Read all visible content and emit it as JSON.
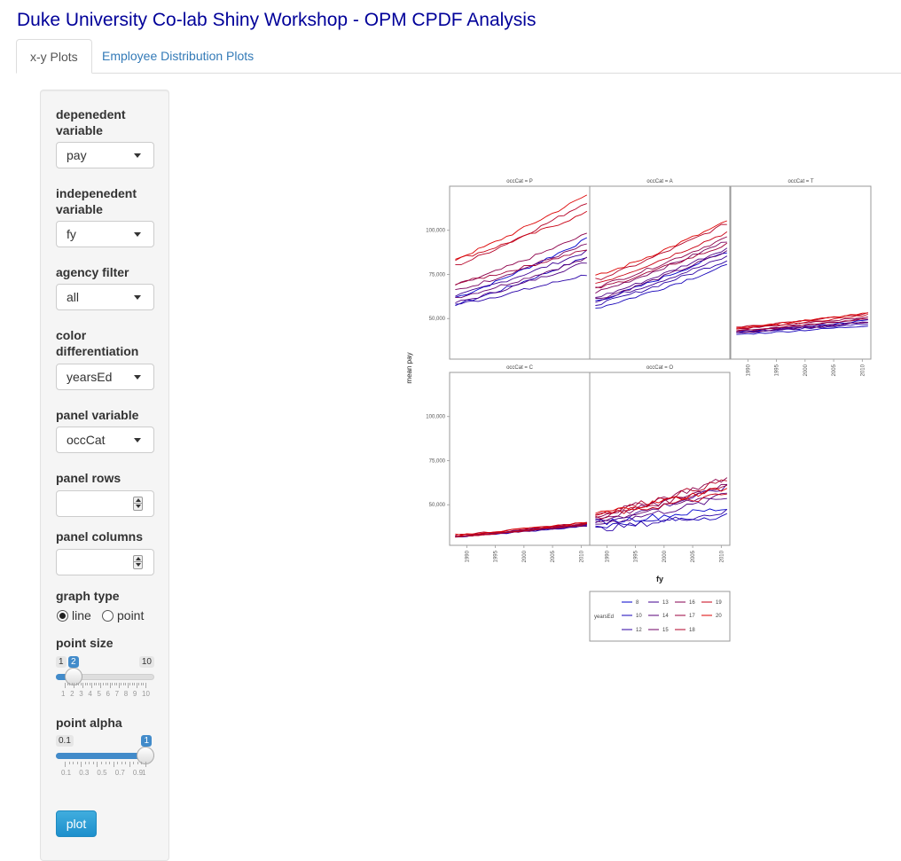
{
  "app": {
    "title": "Duke University Co-lab Shiny Workshop - OPM CPDF Analysis"
  },
  "tabs": [
    {
      "label": "x-y Plots",
      "active": true
    },
    {
      "label": "Employee Distribution Plots",
      "active": false
    }
  ],
  "sidebar": {
    "dependent_label": "depenedent variable",
    "dependent_value": "pay",
    "independent_label": "indepenedent variable",
    "independent_value": "fy",
    "agency_label": "agency filter",
    "agency_value": "all",
    "color_label": "color differentiation",
    "color_value": "yearsEd",
    "panel_var_label": "panel variable",
    "panel_var_value": "occCat",
    "panel_rows_label": "panel rows",
    "panel_cols_label": "panel columns",
    "graph_type_label": "graph type",
    "graph_type_options": [
      "line",
      "point"
    ],
    "graph_type_selected": "line",
    "point_size": {
      "label": "point size",
      "min": "1",
      "max": "10",
      "value": "2",
      "grid": [
        "1",
        "2",
        "3",
        "4",
        "5",
        "6",
        "7",
        "8",
        "9",
        "10"
      ],
      "fraction": 0.111
    },
    "point_alpha": {
      "label": "point alpha",
      "min": "0.1",
      "max": "1",
      "value": "1",
      "grid": [
        "0.1",
        "0.3",
        "0.5",
        "0.7",
        "0.9",
        "1"
      ],
      "fraction": 1.0
    },
    "plot_button": "plot"
  },
  "plot": {
    "xlabel": "fy",
    "ylabel": "mean pay",
    "y_ticks": [
      "100,000",
      "75,000",
      "50,000"
    ],
    "x_ticks": [
      "1990",
      "1995",
      "2000",
      "2005",
      "2010"
    ],
    "panels": [
      "occCat = P",
      "occCat = A",
      "occCat = T",
      "occCat = C",
      "occCat = O"
    ],
    "legend_title": "yearsEd",
    "legend_levels": [
      "8",
      "13",
      "16",
      "19",
      "10",
      "14",
      "17",
      "20",
      "12",
      "15",
      "18"
    ],
    "low_color": "#0000cc",
    "high_color": "#dd0000"
  },
  "chart_data": {
    "type": "line",
    "x": [
      1988,
      1989,
      1990,
      1991,
      1992,
      1993,
      1994,
      1995,
      1996,
      1997,
      1998,
      1999,
      2000,
      2001,
      2002,
      2003,
      2004,
      2005,
      2006,
      2007,
      2008,
      2009,
      2010,
      2011
    ],
    "ylim": [
      27000,
      125000
    ],
    "xlim": [
      1987,
      2011.5
    ],
    "xlabel": "fy",
    "ylabel": "mean pay",
    "legend_title": "yearsEd",
    "facets": [
      {
        "name": "occCat = P",
        "start": [
          62000,
          58000,
          58000,
          63000,
          59000,
          62000,
          66000,
          69000,
          70000,
          80000,
          83500,
          84000
        ],
        "end": [
          95000,
          85000,
          75000,
          88000,
          82000,
          84000,
          92000,
          98000,
          89000,
          116000,
          110000,
          120000
        ]
      },
      {
        "name": "occCat = A",
        "start": [
          60000,
          56000,
          58000,
          60000,
          62000,
          61000,
          65000,
          68000,
          67000,
          72000,
          70000,
          74000
        ],
        "end": [
          88000,
          80000,
          83000,
          85000,
          90000,
          88000,
          94000,
          96000,
          92000,
          104000,
          99000,
          105000
        ]
      },
      {
        "name": "occCat = T",
        "start": [
          42000,
          41000,
          42000,
          42000,
          43000,
          42000,
          43000,
          44000,
          43000,
          45000,
          44000,
          45000
        ],
        "end": [
          49000,
          46000,
          47000,
          48000,
          48000,
          48000,
          50000,
          51000,
          50000,
          53000,
          52000,
          53000
        ]
      },
      {
        "name": "occCat = C",
        "start": [
          32000,
          32000,
          32000,
          32000,
          32000,
          32000,
          32000,
          32000,
          32000,
          33000,
          32000,
          33000
        ],
        "end": [
          39000,
          38000,
          38000,
          39000,
          39000,
          38000,
          39000,
          40000,
          39000,
          40000,
          39000,
          40000
        ]
      },
      {
        "name": "occCat = O",
        "start": [
          40000,
          38000,
          36000,
          40000,
          39000,
          41000,
          42000,
          44000,
          43000,
          45000,
          44000,
          45000
        ],
        "end": [
          48000,
          44000,
          46000,
          60000,
          54000,
          57000,
          62000,
          65000,
          61000,
          64000,
          56000,
          60000
        ]
      }
    ]
  }
}
